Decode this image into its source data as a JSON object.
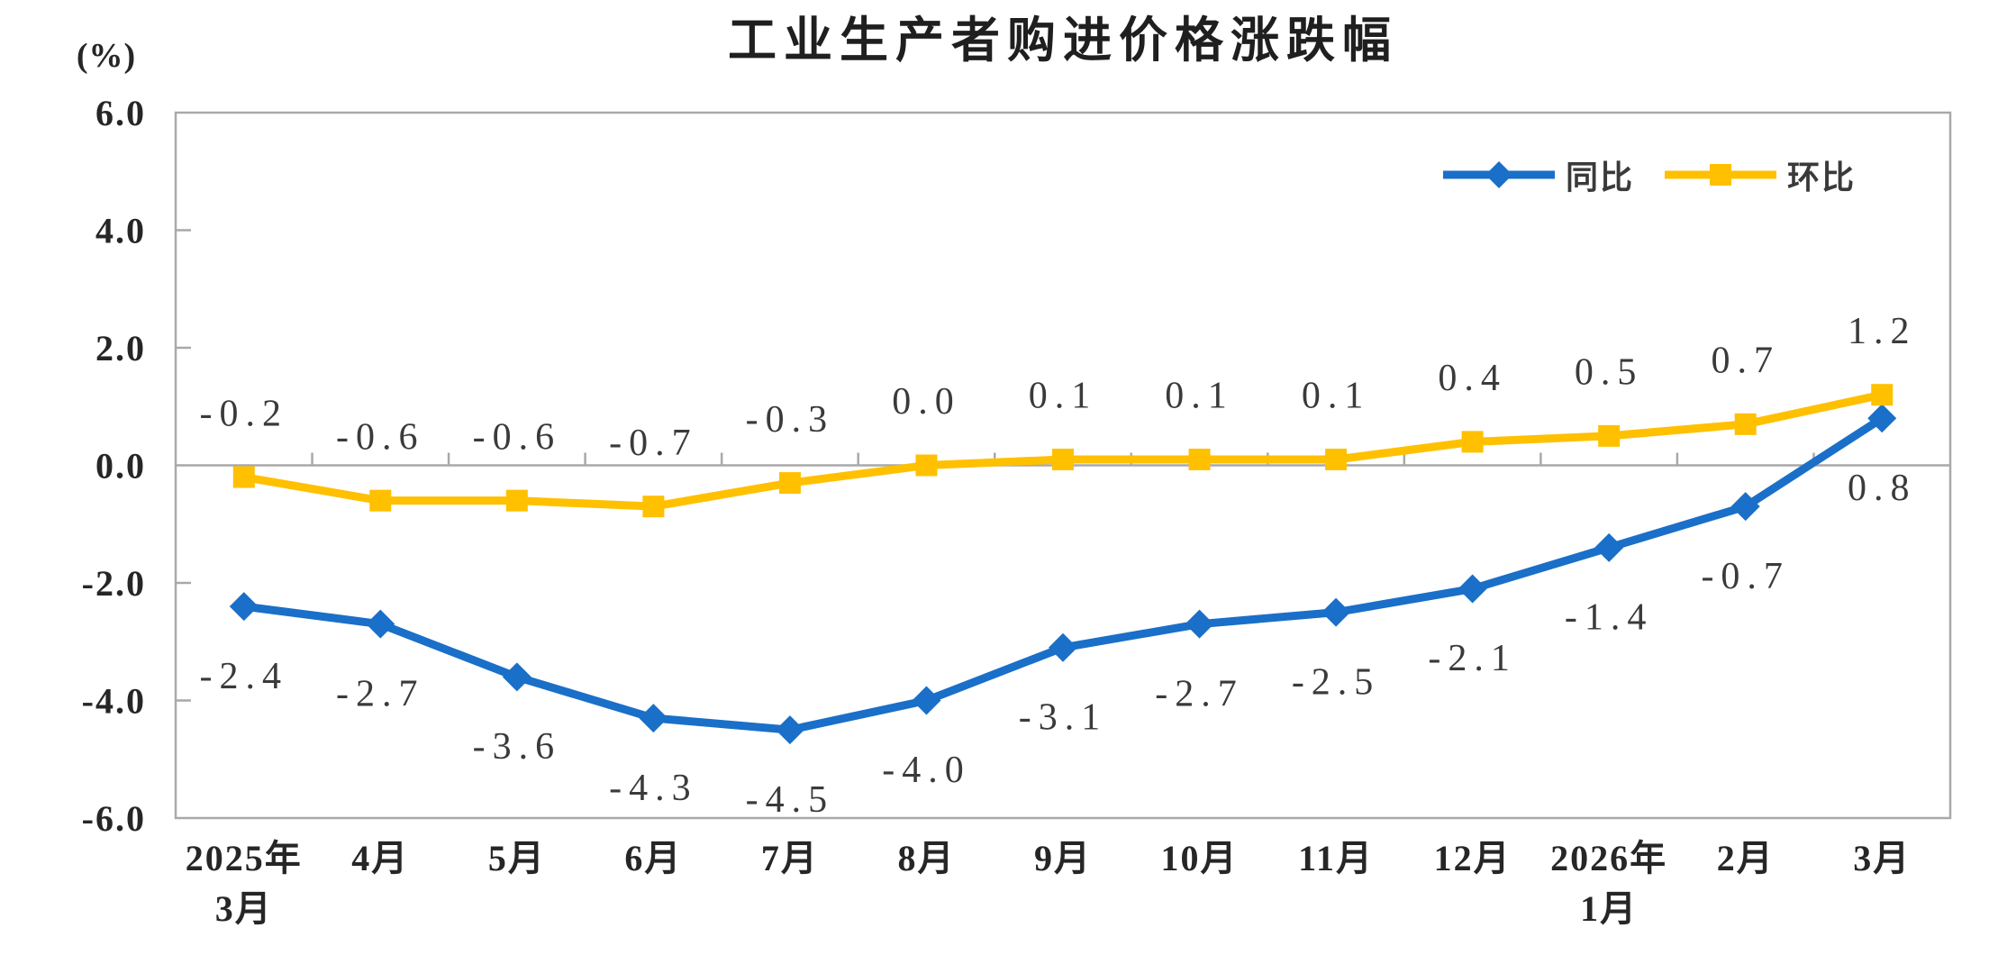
{
  "chart_data": {
    "type": "line",
    "title": "工业生产者购进价格涨跌幅",
    "unit_label": "(%)",
    "categories": [
      "2025年\n3月",
      "4月",
      "5月",
      "6月",
      "7月",
      "8月",
      "9月",
      "10月",
      "11月",
      "12月",
      "2026年\n1月",
      "2月",
      "3月"
    ],
    "series": [
      {
        "name": "同比",
        "color": "#1a6fc8",
        "marker": "diamond",
        "label_position": "below",
        "values": [
          -2.4,
          -2.7,
          -3.6,
          -4.3,
          -4.5,
          -4.0,
          -3.1,
          -2.7,
          -2.5,
          -2.1,
          -1.4,
          -0.7,
          0.8
        ],
        "value_labels": [
          "-2.4",
          "-2.7",
          "-3.6",
          "-4.3",
          "-4.5",
          "-4.0",
          "-3.1",
          "-2.7",
          "-2.5",
          "-2.1",
          "-1.4",
          "-0.7",
          "0.8"
        ]
      },
      {
        "name": "环比",
        "color": "#ffc000",
        "marker": "square",
        "label_position": "above",
        "values": [
          -0.2,
          -0.6,
          -0.6,
          -0.7,
          -0.3,
          0.0,
          0.1,
          0.1,
          0.1,
          0.4,
          0.5,
          0.7,
          1.2
        ],
        "value_labels": [
          "-0.2",
          "-0.6",
          "-0.6",
          "-0.7",
          "-0.3",
          "0.0",
          "0.1",
          "0.1",
          "0.1",
          "0.4",
          "0.5",
          "0.7",
          "1.2"
        ]
      }
    ],
    "y_axis": {
      "min": -6.0,
      "max": 6.0,
      "step": 2.0,
      "tick_labels": [
        "6.0",
        "4.0",
        "2.0",
        "0.0",
        "-2.0",
        "-4.0",
        "-6.0"
      ]
    },
    "grid": "zero-line-only",
    "legend_position": "top-right",
    "colors": {
      "axis": "#a9a9a9",
      "label_text": "#3a3a3a",
      "axis_text": "#262626",
      "title_text": "#1f1f1f"
    }
  }
}
